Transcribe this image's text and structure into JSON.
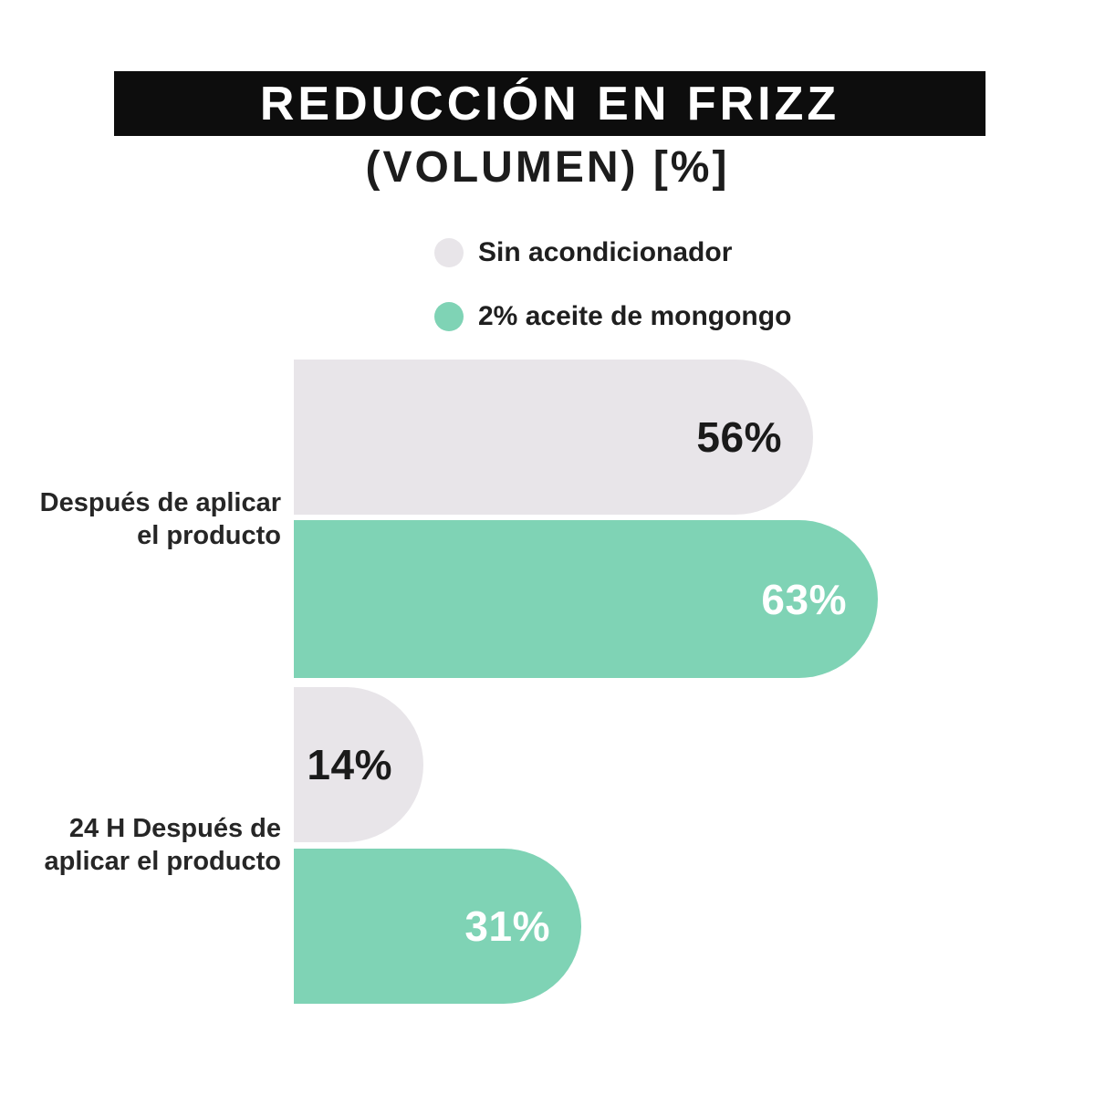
{
  "title": {
    "banner": "REDUCCIÓN EN FRIZZ",
    "subtitle": "(VOLUMEN) [%]"
  },
  "legend": {
    "items": [
      {
        "label": "Sin acondicionador",
        "color": "#e8e5e9"
      },
      {
        "label": "2% aceite de mongongo",
        "color": "#7fd3b5"
      }
    ]
  },
  "categories_display": {
    "group1": "Después de aplicar\nel producto",
    "group2": "24 H Después de\naplicar el producto"
  },
  "bars": [
    {
      "name": "sin-acondicionador-despues",
      "series": 0,
      "value": 56,
      "label": "56%"
    },
    {
      "name": "mongongo-despues",
      "series": 1,
      "value": 63,
      "label": "63%"
    },
    {
      "name": "sin-acondicionador-24h",
      "series": 0,
      "value": 14,
      "label": "14%"
    },
    {
      "name": "mongongo-24h",
      "series": 1,
      "value": 31,
      "label": "31%"
    }
  ],
  "chart_data": {
    "type": "bar",
    "orientation": "horizontal",
    "title": "REDUCCIÓN EN FRIZZ (VOLUMEN) [%]",
    "categories": [
      "Después de aplicar el producto",
      "24 H Después de aplicar el producto"
    ],
    "series": [
      {
        "name": "Sin acondicionador",
        "color": "#e8e5e9",
        "values": [
          56,
          14
        ]
      },
      {
        "name": "2% aceite de mongongo",
        "color": "#7fd3b5",
        "values": [
          63,
          31
        ]
      }
    ],
    "value_labels": [
      [
        "56%",
        "14%"
      ],
      [
        "63%",
        "31%"
      ]
    ],
    "xlim": [
      0,
      100
    ],
    "grid": false,
    "legend_position": "top",
    "value_label_position": "inside-end"
  },
  "colors": {
    "background": "#ffffff",
    "banner_bg": "#0d0d0d",
    "banner_text": "#ffffff",
    "subtitle_text": "#1c1c1c",
    "bar_gray": "#e8e5e9",
    "bar_green": "#7fd3b5",
    "value_dark": "#1a1a1a",
    "value_light": "#ffffff"
  }
}
